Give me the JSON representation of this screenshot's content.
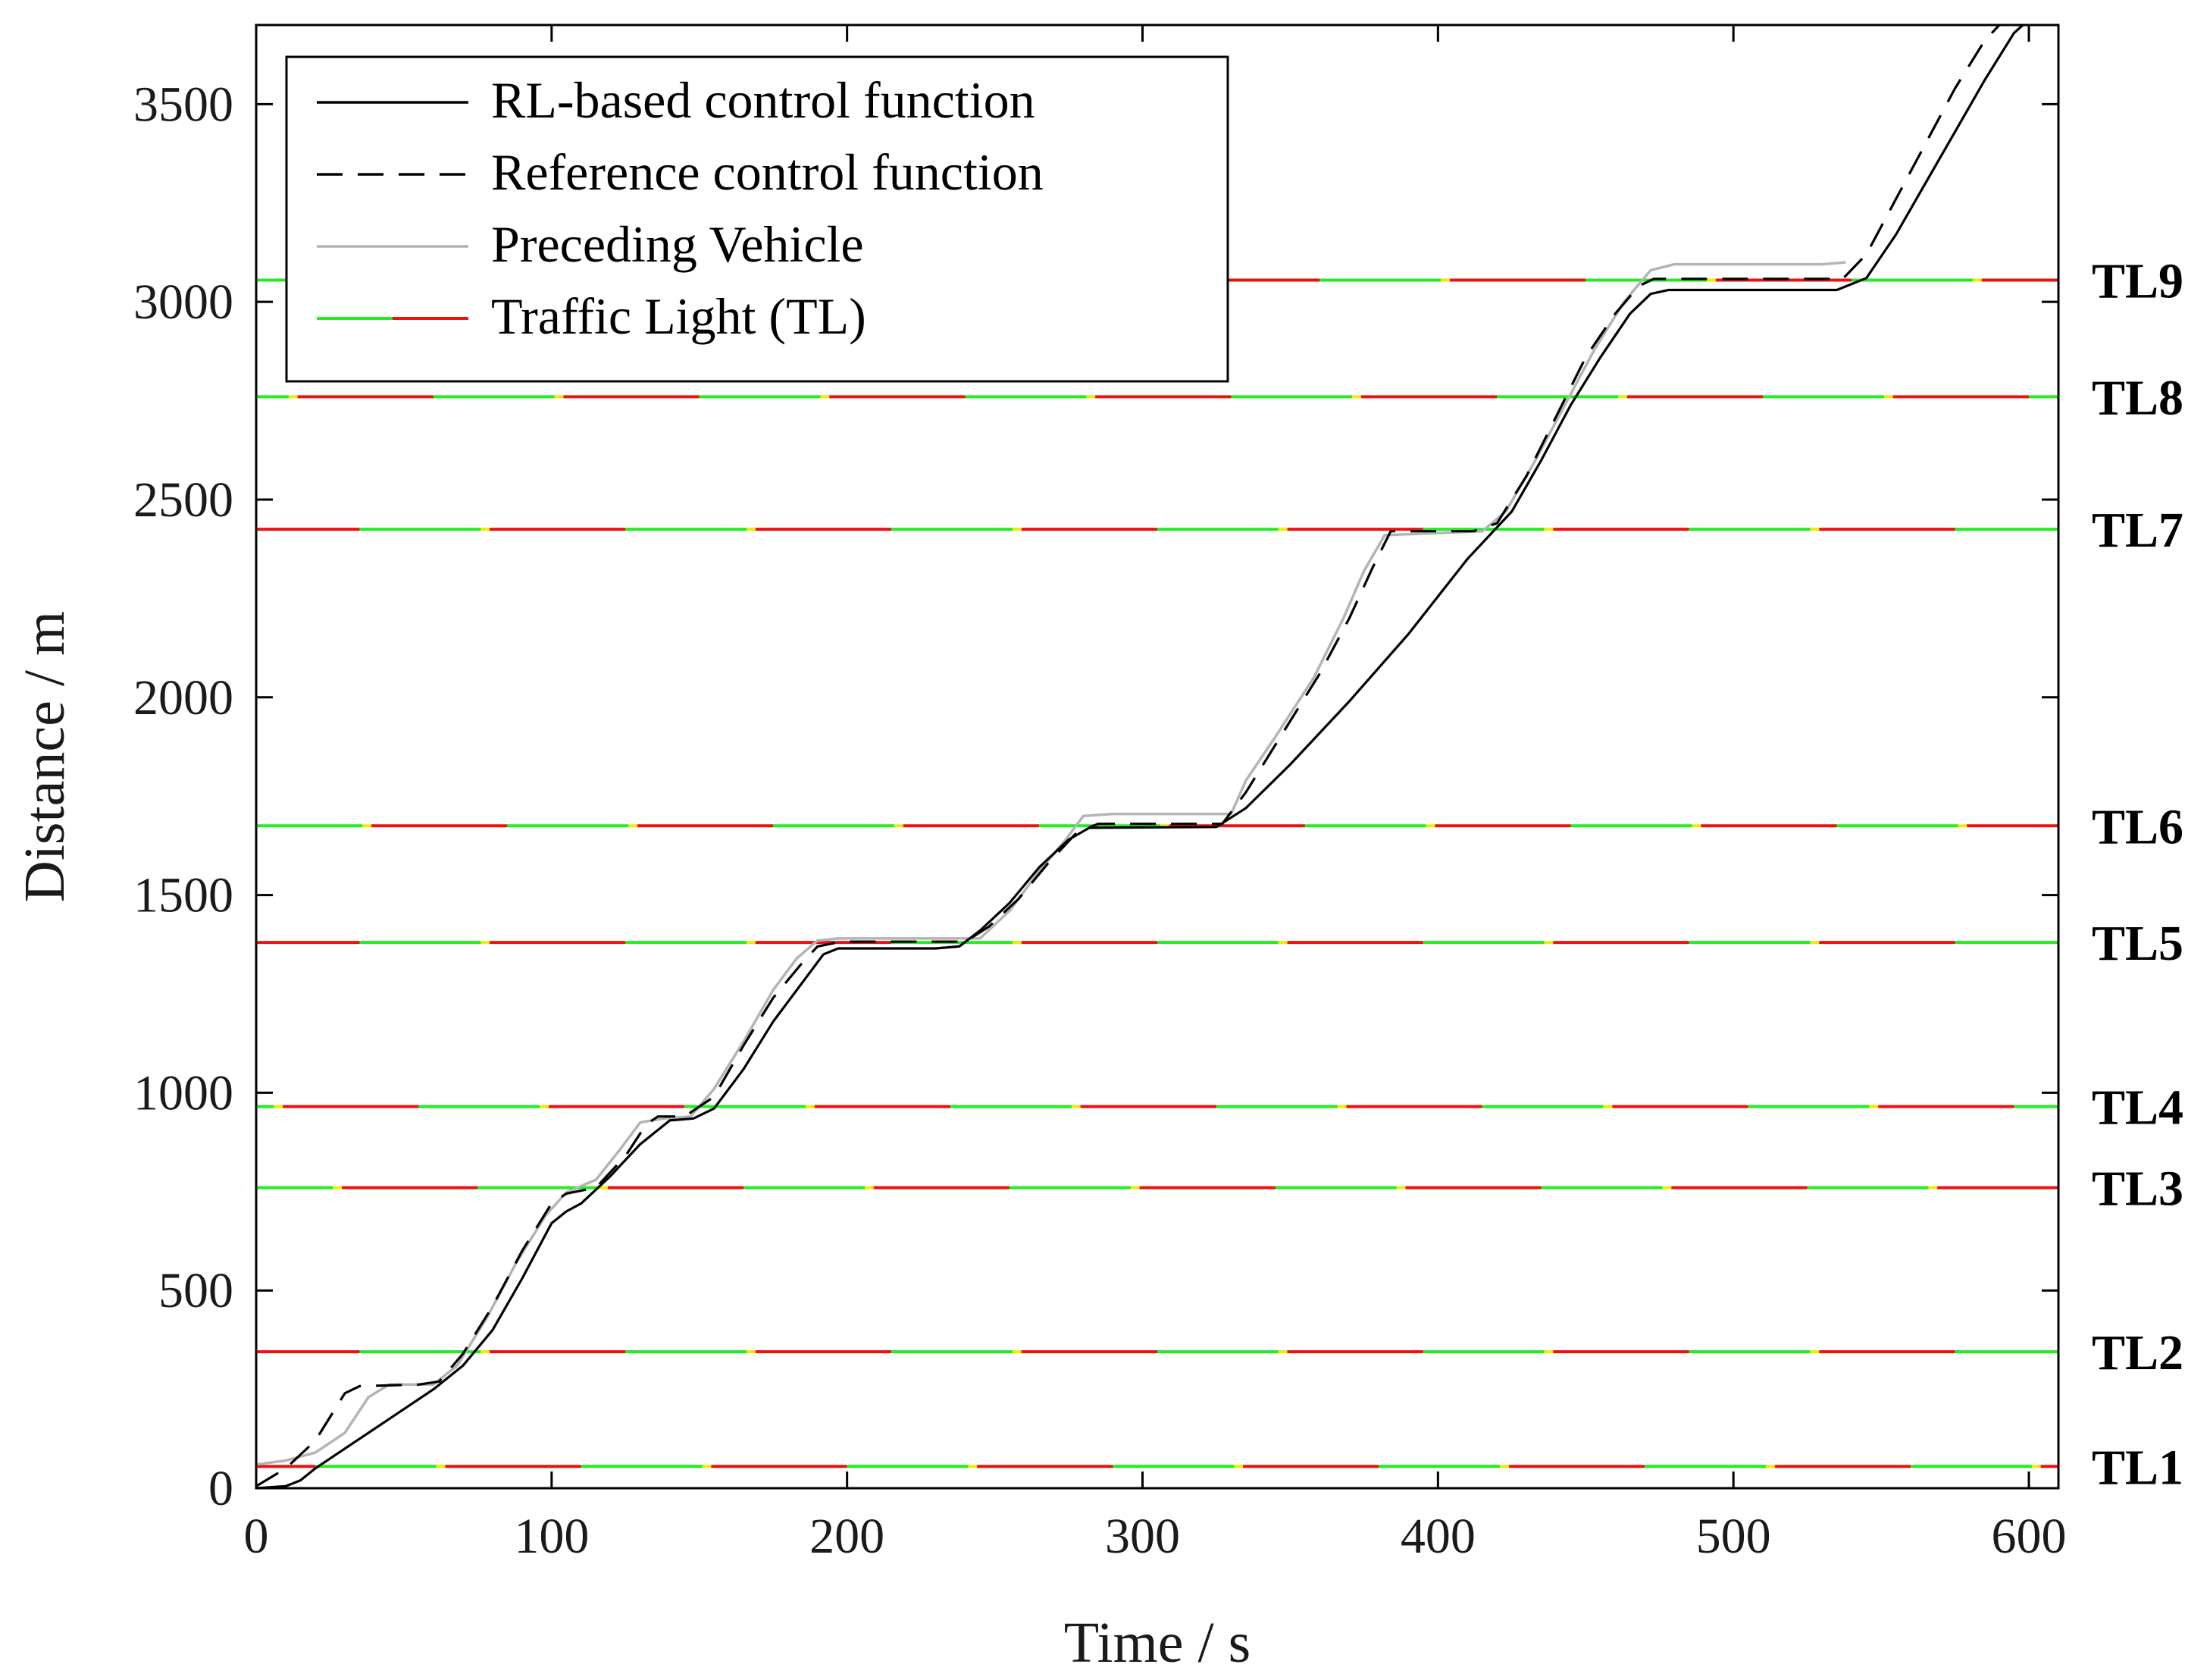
{
  "chart_data": {
    "type": "line",
    "xlabel": "Time / s",
    "ylabel": "Distance / m",
    "xlim": [
      0,
      610
    ],
    "ylim": [
      0,
      3700
    ],
    "xticks": [
      0,
      100,
      200,
      300,
      400,
      500,
      600
    ],
    "yticks": [
      0,
      500,
      1000,
      1500,
      2000,
      2500,
      3000,
      3500
    ],
    "grid": false,
    "legend_position": "top-left",
    "legend": [
      {
        "label": "RL-based control function",
        "style": "solid",
        "color": "#000000"
      },
      {
        "label": "Reference control function",
        "style": "dashed",
        "color": "#000000"
      },
      {
        "label": "Preceding Vehicle",
        "style": "solid",
        "color": "#b4b4b4"
      },
      {
        "label": "Traffic Light (TL)",
        "style": "traffic-light",
        "colors": [
          "#22ee22",
          "#ee1111"
        ]
      }
    ],
    "series": [
      {
        "name": "RL-based control function",
        "color": "#000000",
        "dash": "none",
        "points": [
          [
            0,
            0
          ],
          [
            10,
            5
          ],
          [
            15,
            20
          ],
          [
            20,
            50
          ],
          [
            30,
            100
          ],
          [
            40,
            150
          ],
          [
            50,
            200
          ],
          [
            60,
            250
          ],
          [
            70,
            310
          ],
          [
            80,
            400
          ],
          [
            90,
            530
          ],
          [
            100,
            670
          ],
          [
            105,
            700
          ],
          [
            110,
            720
          ],
          [
            120,
            790
          ],
          [
            130,
            870
          ],
          [
            140,
            930
          ],
          [
            148,
            935
          ],
          [
            155,
            960
          ],
          [
            165,
            1060
          ],
          [
            175,
            1180
          ],
          [
            185,
            1280
          ],
          [
            192,
            1350
          ],
          [
            197,
            1365
          ],
          [
            230,
            1365
          ],
          [
            238,
            1370
          ],
          [
            245,
            1410
          ],
          [
            255,
            1480
          ],
          [
            265,
            1570
          ],
          [
            275,
            1640
          ],
          [
            282,
            1670
          ],
          [
            325,
            1672
          ],
          [
            335,
            1720
          ],
          [
            350,
            1830
          ],
          [
            370,
            1990
          ],
          [
            390,
            2160
          ],
          [
            410,
            2350
          ],
          [
            420,
            2430
          ],
          [
            425,
            2470
          ],
          [
            435,
            2600
          ],
          [
            445,
            2740
          ],
          [
            455,
            2860
          ],
          [
            465,
            2970
          ],
          [
            472,
            3020
          ],
          [
            478,
            3030
          ],
          [
            535,
            3030
          ],
          [
            545,
            3060
          ],
          [
            555,
            3170
          ],
          [
            565,
            3300
          ],
          [
            575,
            3430
          ],
          [
            585,
            3560
          ],
          [
            595,
            3680
          ],
          [
            598,
            3700
          ]
        ]
      },
      {
        "name": "Reference control function",
        "color": "#000000",
        "dash": "34 20",
        "points": [
          [
            0,
            5
          ],
          [
            10,
            50
          ],
          [
            20,
            120
          ],
          [
            25,
            180
          ],
          [
            30,
            240
          ],
          [
            35,
            258
          ],
          [
            55,
            262
          ],
          [
            62,
            270
          ],
          [
            70,
            340
          ],
          [
            80,
            460
          ],
          [
            90,
            600
          ],
          [
            100,
            720
          ],
          [
            105,
            745
          ],
          [
            115,
            760
          ],
          [
            125,
            840
          ],
          [
            132,
            920
          ],
          [
            136,
            940
          ],
          [
            145,
            940
          ],
          [
            155,
            990
          ],
          [
            165,
            1120
          ],
          [
            175,
            1240
          ],
          [
            185,
            1330
          ],
          [
            190,
            1370
          ],
          [
            198,
            1382
          ],
          [
            240,
            1382
          ],
          [
            248,
            1420
          ],
          [
            258,
            1490
          ],
          [
            268,
            1580
          ],
          [
            278,
            1660
          ],
          [
            285,
            1680
          ],
          [
            327,
            1680
          ],
          [
            335,
            1760
          ],
          [
            345,
            1880
          ],
          [
            360,
            2060
          ],
          [
            370,
            2200
          ],
          [
            378,
            2330
          ],
          [
            384,
            2420
          ],
          [
            412,
            2420
          ],
          [
            420,
            2440
          ],
          [
            430,
            2560
          ],
          [
            440,
            2710
          ],
          [
            450,
            2860
          ],
          [
            460,
            2970
          ],
          [
            468,
            3040
          ],
          [
            473,
            3058
          ],
          [
            537,
            3058
          ],
          [
            545,
            3120
          ],
          [
            555,
            3260
          ],
          [
            565,
            3400
          ],
          [
            575,
            3540
          ],
          [
            585,
            3660
          ],
          [
            590,
            3700
          ]
        ]
      },
      {
        "name": "Preceding Vehicle",
        "color": "#b4b4b4",
        "dash": "none",
        "points": [
          [
            0,
            60
          ],
          [
            10,
            70
          ],
          [
            20,
            90
          ],
          [
            30,
            140
          ],
          [
            38,
            230
          ],
          [
            45,
            262
          ],
          [
            60,
            262
          ],
          [
            68,
            310
          ],
          [
            78,
            430
          ],
          [
            88,
            570
          ],
          [
            98,
            690
          ],
          [
            105,
            748
          ],
          [
            115,
            780
          ],
          [
            123,
            855
          ],
          [
            130,
            925
          ],
          [
            138,
            935
          ],
          [
            147,
            940
          ],
          [
            155,
            1010
          ],
          [
            165,
            1130
          ],
          [
            175,
            1260
          ],
          [
            183,
            1340
          ],
          [
            190,
            1385
          ],
          [
            197,
            1390
          ],
          [
            245,
            1390
          ],
          [
            255,
            1460
          ],
          [
            265,
            1560
          ],
          [
            274,
            1640
          ],
          [
            280,
            1700
          ],
          [
            290,
            1705
          ],
          [
            330,
            1705
          ],
          [
            335,
            1790
          ],
          [
            345,
            1900
          ],
          [
            358,
            2050
          ],
          [
            368,
            2200
          ],
          [
            375,
            2320
          ],
          [
            382,
            2410
          ],
          [
            415,
            2420
          ],
          [
            423,
            2470
          ],
          [
            433,
            2600
          ],
          [
            443,
            2740
          ],
          [
            453,
            2880
          ],
          [
            463,
            3000
          ],
          [
            472,
            3080
          ],
          [
            480,
            3095
          ],
          [
            530,
            3095
          ],
          [
            538,
            3100
          ]
        ]
      }
    ],
    "traffic_lights": [
      {
        "label": "TL1",
        "y": 55,
        "period": 90,
        "green": 41,
        "yellow": 3,
        "red": 46,
        "offset": 70
      },
      {
        "label": "TL2",
        "y": 345,
        "period": 90,
        "green": 41,
        "yellow": 3,
        "red": 46,
        "offset": 55
      },
      {
        "label": "TL3",
        "y": 760,
        "period": 90,
        "green": 41,
        "yellow": 3,
        "red": 46,
        "offset": 15
      },
      {
        "label": "TL4",
        "y": 965,
        "period": 90,
        "green": 41,
        "yellow": 3,
        "red": 46,
        "offset": 35
      },
      {
        "label": "TL5",
        "y": 1380,
        "period": 90,
        "green": 41,
        "yellow": 3,
        "red": 46,
        "offset": 55
      },
      {
        "label": "TL6",
        "y": 1675,
        "period": 90,
        "green": 41,
        "yellow": 3,
        "red": 46,
        "offset": 5
      },
      {
        "label": "TL7",
        "y": 2425,
        "period": 90,
        "green": 41,
        "yellow": 3,
        "red": 46,
        "offset": 55
      },
      {
        "label": "TL8",
        "y": 2760,
        "period": 90,
        "green": 41,
        "yellow": 3,
        "red": 46,
        "offset": 30
      },
      {
        "label": "TL9",
        "y": 3055,
        "period": 90,
        "green": 41,
        "yellow": 3,
        "red": 46,
        "offset": 0
      }
    ],
    "colors": {
      "green": "#22ee22",
      "yellow": "#eeee00",
      "red": "#ee1111",
      "preceding": "#b4b4b4"
    }
  }
}
